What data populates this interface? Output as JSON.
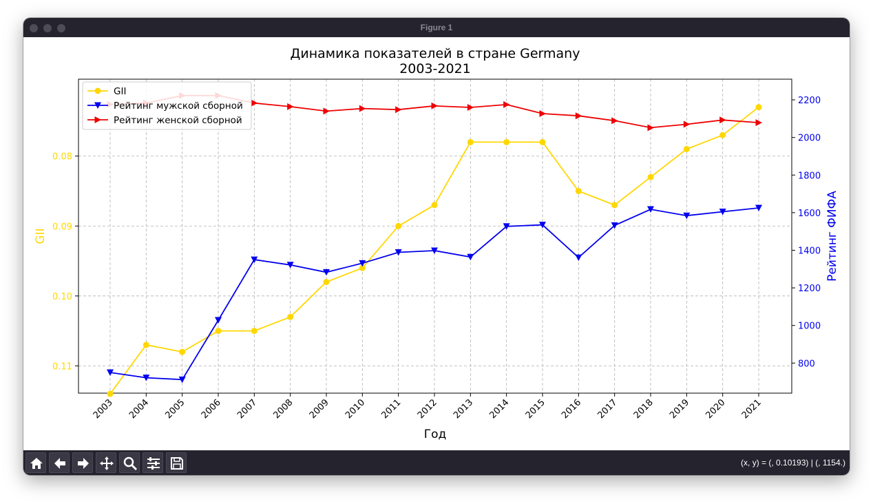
{
  "window": {
    "title": "Figure 1"
  },
  "toolbar": {
    "buttons": [
      "home-icon",
      "back-arrow-icon",
      "forward-arrow-icon",
      "pan-move-icon",
      "zoom-magnifier-icon",
      "configure-subplots-icon",
      "save-disk-icon"
    ],
    "coordinates": "(x, y) = (, 0.10193) | (, 1154.)"
  },
  "colors": {
    "gii": "#ffd700",
    "men": "#0000ee",
    "women": "#ee0000",
    "grid": "#b0b0b0"
  },
  "chart_data": {
    "type": "line",
    "title": "Динамика показателей в стране Germany",
    "subtitle": "2003-2021",
    "xlabel": "Год",
    "ylabel_left": "GII",
    "ylabel_right": "Рейтинг ФИФА",
    "categories": [
      "2003",
      "2004",
      "2005",
      "2006",
      "2007",
      "2008",
      "2009",
      "2010",
      "2011",
      "2012",
      "2013",
      "2014",
      "2015",
      "2016",
      "2017",
      "2018",
      "2019",
      "2020",
      "2021"
    ],
    "y_left": {
      "inverted": true,
      "lim": [
        0.1139,
        0.069
      ],
      "ticks": [
        0.08,
        0.09,
        0.1,
        0.11
      ],
      "tick_labels": [
        "0.08",
        "0.09",
        "0.10",
        "0.11"
      ]
    },
    "y_right": {
      "lim": [
        640,
        2310
      ],
      "ticks": [
        800,
        1000,
        1200,
        1400,
        1600,
        1800,
        2000,
        2200
      ],
      "tick_labels": [
        "800",
        "1000",
        "1200",
        "1400",
        "1600",
        "1800",
        "2000",
        "2200"
      ]
    },
    "grid": true,
    "legend": "upper left",
    "series": [
      {
        "name": "GII",
        "axis": "left",
        "marker": "circle",
        "color": "#ffd700",
        "values": [
          0.114,
          0.107,
          0.108,
          0.105,
          0.105,
          0.103,
          0.098,
          0.096,
          0.09,
          0.087,
          0.078,
          0.078,
          0.078,
          0.085,
          0.087,
          0.083,
          0.079,
          0.077,
          0.073
        ]
      },
      {
        "name": "Рейтинг мужской сборной",
        "axis": "right",
        "marker": "triangle-down",
        "color": "#0000ee",
        "values": [
          750,
          722,
          712,
          1028,
          1350,
          1322,
          1283,
          1331,
          1389,
          1398,
          1364,
          1527,
          1535,
          1361,
          1532,
          1618,
          1584,
          1605,
          1625
        ]
      },
      {
        "name": "Рейтинг женской сборной",
        "axis": "right",
        "marker": "triangle-right",
        "color": "#ee0000",
        "values": [
          2176,
          2183,
          2223,
          2223,
          2183,
          2164,
          2140,
          2154,
          2148,
          2168,
          2160,
          2175,
          2127,
          2115,
          2089,
          2052,
          2070,
          2093,
          2079
        ]
      }
    ]
  }
}
